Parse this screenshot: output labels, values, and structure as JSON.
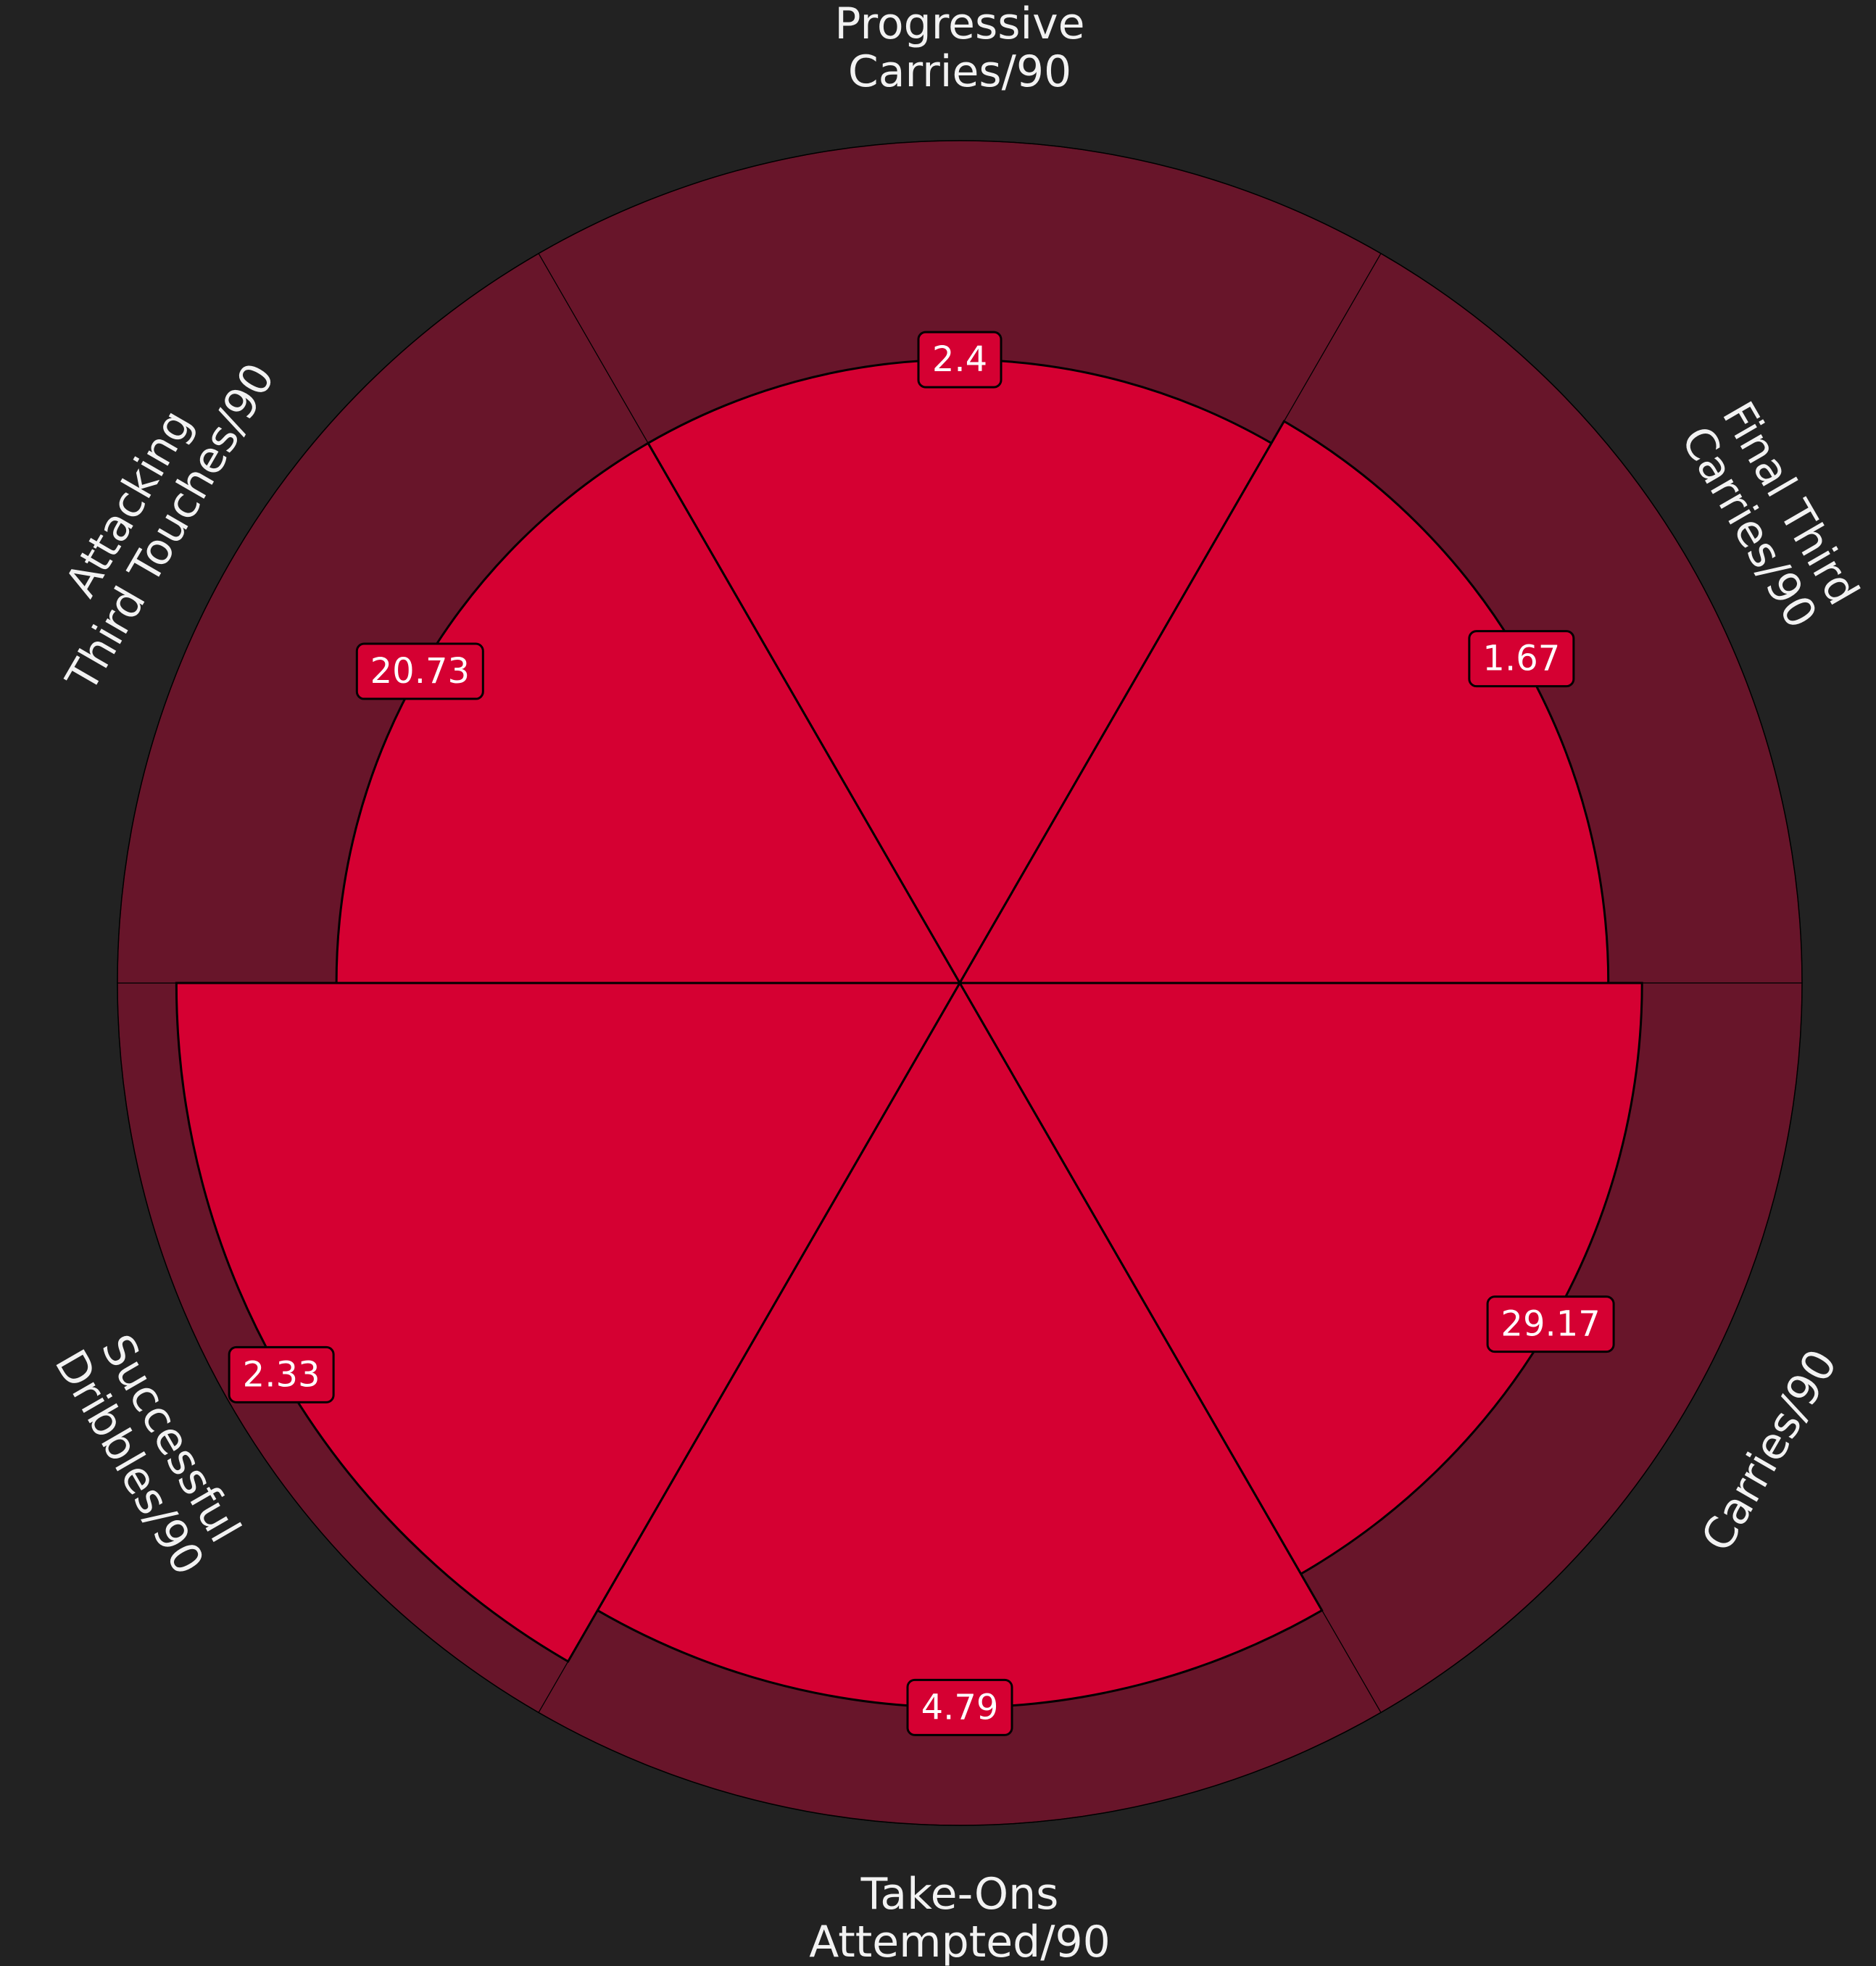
{
  "chart_data": {
    "type": "pie",
    "subtype": "pizza",
    "parameters": [
      {
        "label_lines": [
          "Progressive",
          "Carries/90"
        ],
        "value": 2.4,
        "value_label": "2.4",
        "percentile": 74
      },
      {
        "label_lines": [
          "Final Third",
          "Carries/90"
        ],
        "value": 1.67,
        "value_label": "1.67",
        "percentile": 77
      },
      {
        "label_lines": [
          "Carries/90"
        ],
        "value": 29.17,
        "value_label": "29.17",
        "percentile": 81
      },
      {
        "label_lines": [
          "Take-Ons",
          "Attempted/90"
        ],
        "value": 4.79,
        "value_label": "4.79",
        "percentile": 86
      },
      {
        "label_lines": [
          "Successful",
          "Dribbles/90"
        ],
        "value": 2.33,
        "value_label": "2.33",
        "percentile": 93
      },
      {
        "label_lines": [
          "Attacking",
          "Third Touches/90"
        ],
        "value": 20.73,
        "value_label": "20.73",
        "percentile": 74
      }
    ],
    "radial_range": [
      0,
      100
    ],
    "grid": false,
    "legend": "none"
  },
  "colors": {
    "background": "#222222",
    "slice_background": "#68152A",
    "slice_fill": "#D50032",
    "edge": "#000000",
    "label_text": "#F2F2F2",
    "value_box": "#D50032",
    "value_text": "#FFFFFF"
  }
}
